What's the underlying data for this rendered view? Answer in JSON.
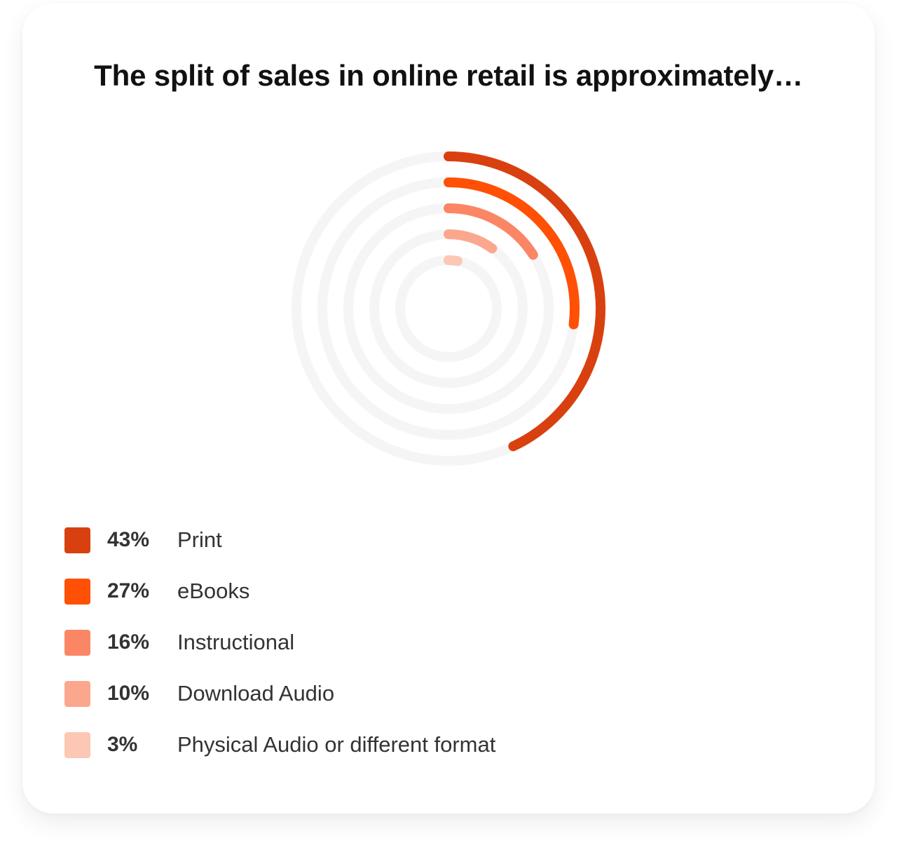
{
  "chart_data": {
    "type": "radial-bar",
    "title": "The split of sales in online retail is approximately…",
    "max": 100,
    "series": [
      {
        "name": "Print",
        "value": 43,
        "value_label": "43%",
        "color": "#d9400f"
      },
      {
        "name": "eBooks",
        "value": 27,
        "value_label": "27%",
        "color": "#ff5005"
      },
      {
        "name": "Instructional",
        "value": 16,
        "value_label": "16%",
        "color": "#fb8665"
      },
      {
        "name": "Download Audio",
        "value": 10,
        "value_label": "10%",
        "color": "#fba78e"
      },
      {
        "name": "Physical Audio or different format",
        "value": 3,
        "value_label": "3%",
        "color": "#fcc7b4"
      }
    ],
    "track_color": "#f5f5f5",
    "start_angle": "top",
    "direction": "clockwise",
    "legend_position": "bottom-left"
  }
}
